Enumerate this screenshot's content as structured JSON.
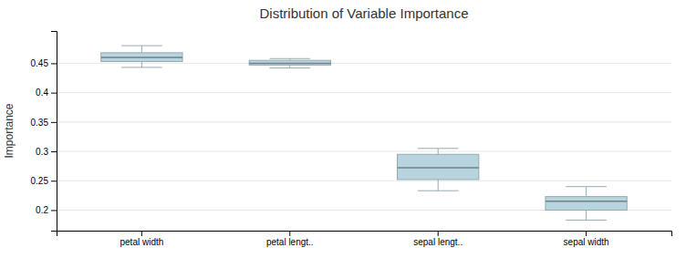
{
  "chart_data": {
    "type": "box",
    "title": "Distribution of Variable Importance",
    "y_label": "Importance",
    "categories": [
      "petal width",
      "petal lengt..",
      "sepal lengt..",
      "sepal width"
    ],
    "values": [
      {
        "whislo": 0.443,
        "q1": 0.453,
        "med": 0.46,
        "q3": 0.468,
        "whishi": 0.48
      },
      {
        "whislo": 0.442,
        "q1": 0.447,
        "med": 0.45,
        "q3": 0.455,
        "whishi": 0.458
      },
      {
        "whislo": 0.233,
        "q1": 0.252,
        "med": 0.272,
        "q3": 0.295,
        "whishi": 0.305
      },
      {
        "whislo": 0.183,
        "q1": 0.2,
        "med": 0.215,
        "q3": 0.223,
        "whishi": 0.24
      }
    ],
    "color": "#b8d4de",
    "ylim": [
      0.165,
      0.505
    ],
    "yticks": [
      0.2,
      0.25,
      0.3,
      0.35,
      0.4,
      0.45
    ],
    "grid": true
  }
}
